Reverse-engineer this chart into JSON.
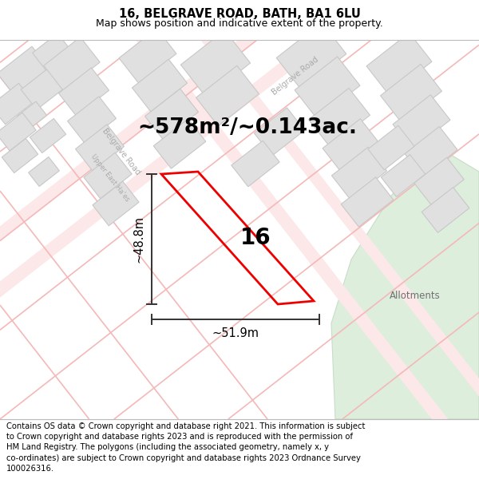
{
  "title_line1": "16, BELGRAVE ROAD, BATH, BA1 6LU",
  "title_line2": "Map shows position and indicative extent of the property.",
  "area_text": "~578m²/~0.143ac.",
  "number_label": "16",
  "dim_width": "~51.9m",
  "dim_height": "~48.8m",
  "footer_text": "Contains OS data © Crown copyright and database right 2021. This information is subject to Crown copyright and database rights 2023 and is reproduced with the permission of HM Land Registry. The polygons (including the associated geometry, namely x, y co-ordinates) are subject to Crown copyright and database rights 2023 Ordnance Survey 100026316.",
  "allotments_label": "Allotments",
  "belgrave_road_label1": "Belgrave Road",
  "belgrave_road_label2": "Belgrave Road",
  "upper_east_hayes_label": "Upper East Ha...",
  "map_bg": "#f8f8f8",
  "block_fill": "#e0e0e0",
  "block_stroke": "#c8c8c8",
  "red_plot_stroke": "#ee0000",
  "red_plot_fill": "none",
  "green_area_fill": "#ddeedd",
  "green_area_stroke": "#c8dcc8",
  "dim_line_color": "#333333",
  "road_line_color": "#f5b8b8",
  "road_outline_color": "#f0a0a0",
  "title_fontsize": 10.5,
  "subtitle_fontsize": 9,
  "area_fontsize": 19,
  "number_fontsize": 20,
  "dim_fontsize": 10.5,
  "footer_fontsize": 7.2,
  "road_label_fontsize": 7,
  "allotments_fontsize": 8.5,
  "title_bg": "#ffffff",
  "footer_bg": "#ffffff"
}
